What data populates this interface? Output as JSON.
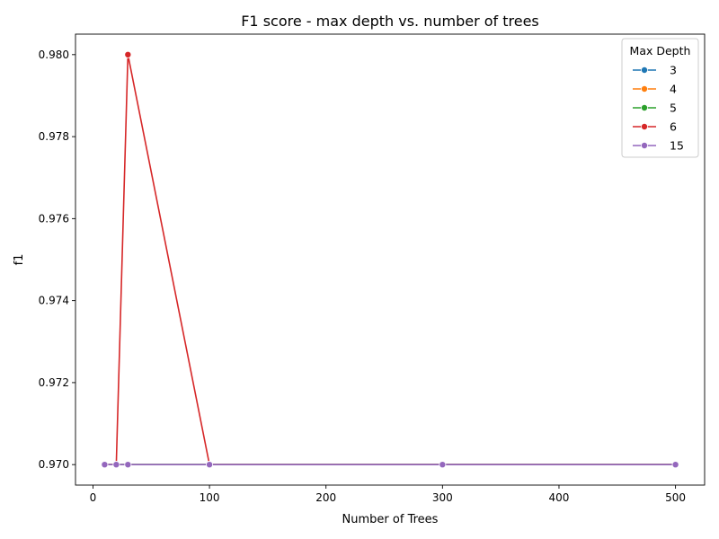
{
  "chart_data": {
    "type": "line",
    "title": "F1 score - max depth vs. number of trees",
    "xlabel": "Number of Trees",
    "ylabel": "f1",
    "xlim": [
      -15,
      525
    ],
    "ylim": [
      0.9695,
      0.9805
    ],
    "xticks": [
      0,
      100,
      200,
      300,
      400,
      500
    ],
    "xtick_labels": [
      "0",
      "100",
      "200",
      "300",
      "400",
      "500"
    ],
    "yticks": [
      0.97,
      0.972,
      0.974,
      0.976,
      0.978,
      0.98
    ],
    "ytick_labels": [
      "0.970",
      "0.972",
      "0.974",
      "0.976",
      "0.978",
      "0.980"
    ],
    "legend": {
      "title": "Max Depth",
      "placement": "top-right"
    },
    "grid": false,
    "x": [
      10,
      20,
      30,
      100,
      300,
      500
    ],
    "series": [
      {
        "name": "3",
        "color": "#1f77b4",
        "values": [
          0.97,
          0.97,
          0.97,
          0.97,
          0.97,
          0.97
        ]
      },
      {
        "name": "4",
        "color": "#ff7f0e",
        "values": [
          0.97,
          0.97,
          0.97,
          0.97,
          0.97,
          0.97
        ]
      },
      {
        "name": "5",
        "color": "#2ca02c",
        "values": [
          0.97,
          0.97,
          0.97,
          0.97,
          0.97,
          0.97
        ]
      },
      {
        "name": "6",
        "color": "#d62728",
        "values": [
          0.97,
          0.97,
          0.98,
          0.97,
          0.97,
          0.97
        ]
      },
      {
        "name": "15",
        "color": "#9467bd",
        "values": [
          0.97,
          0.97,
          0.97,
          0.97,
          0.97,
          0.97
        ]
      }
    ]
  }
}
